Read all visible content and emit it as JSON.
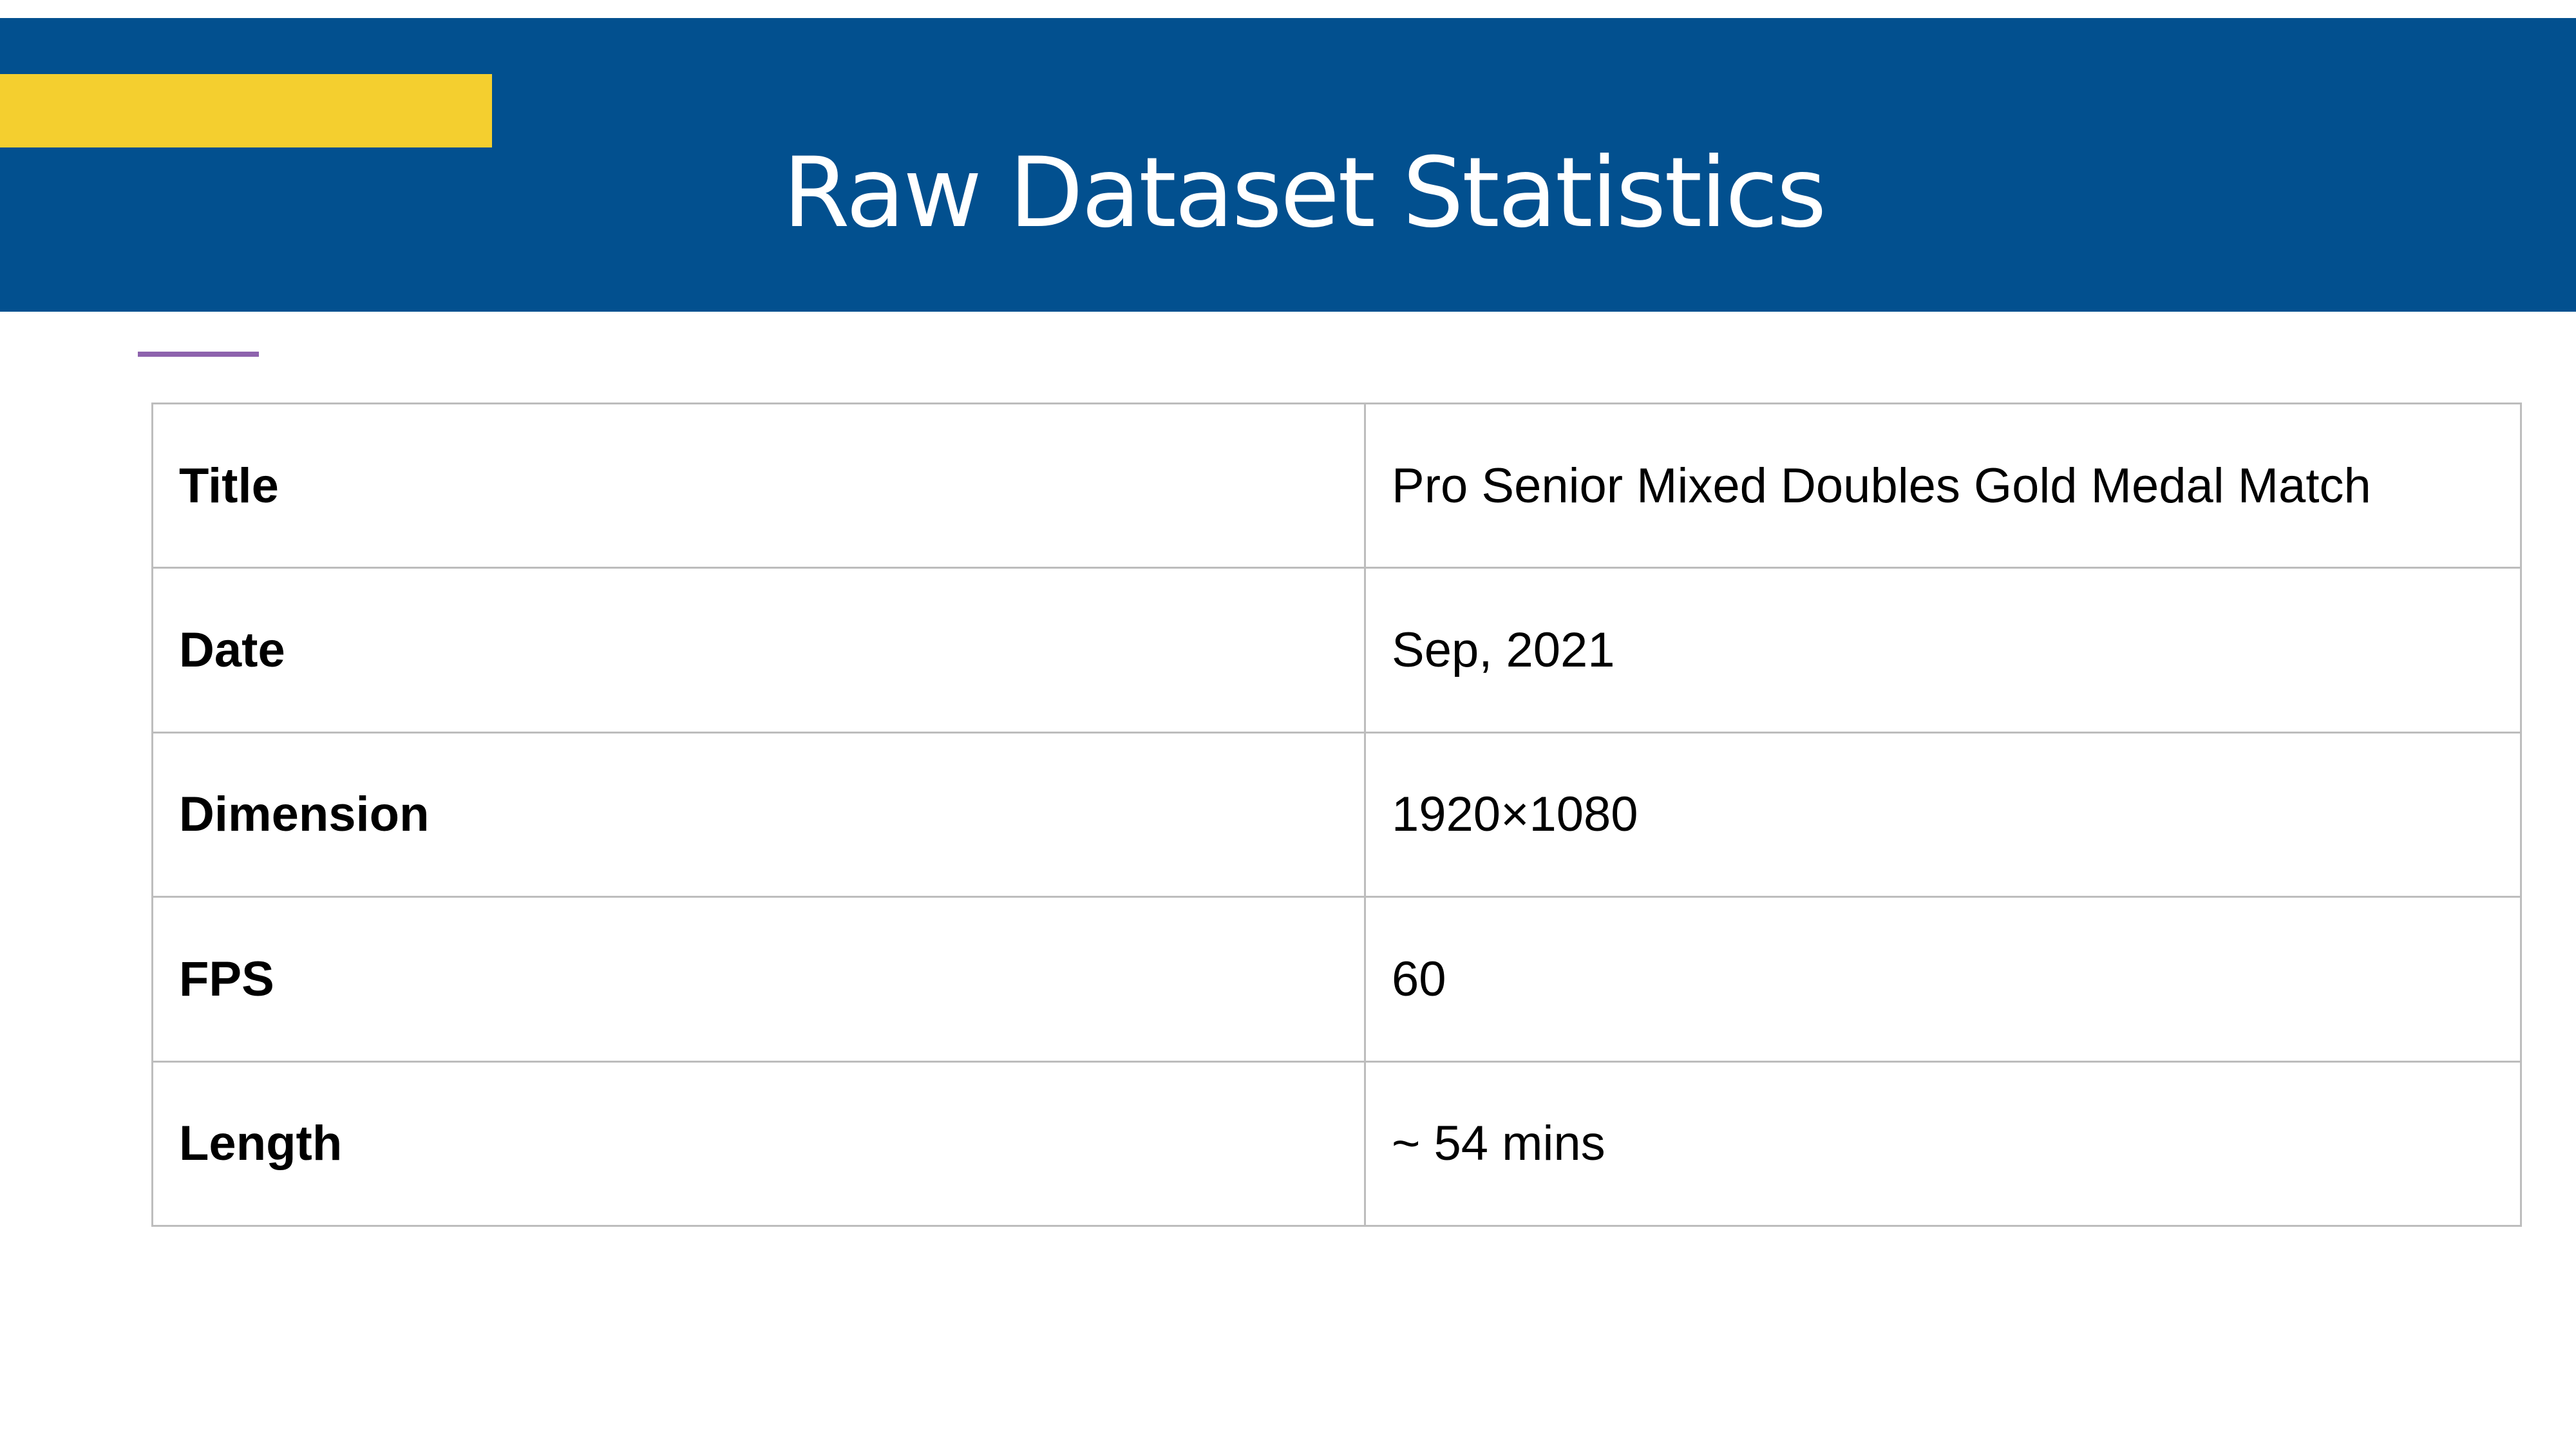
{
  "slide": {
    "title": "Raw Dataset Statistics"
  },
  "table": {
    "rows": [
      {
        "label": "Title",
        "value": "Pro Senior Mixed Doubles Gold Medal Match"
      },
      {
        "label": "Date",
        "value": "Sep, 2021"
      },
      {
        "label": "Dimension",
        "value": "1920×1080"
      },
      {
        "label": "FPS",
        "value": "60"
      },
      {
        "label": "Length",
        "value": "~ 54 mins"
      }
    ]
  },
  "colors": {
    "header_background": "#02508f",
    "accent_bar": "#f4cf2f",
    "divider_line": "#8e63ad",
    "table_border": "#bdbdbd"
  }
}
